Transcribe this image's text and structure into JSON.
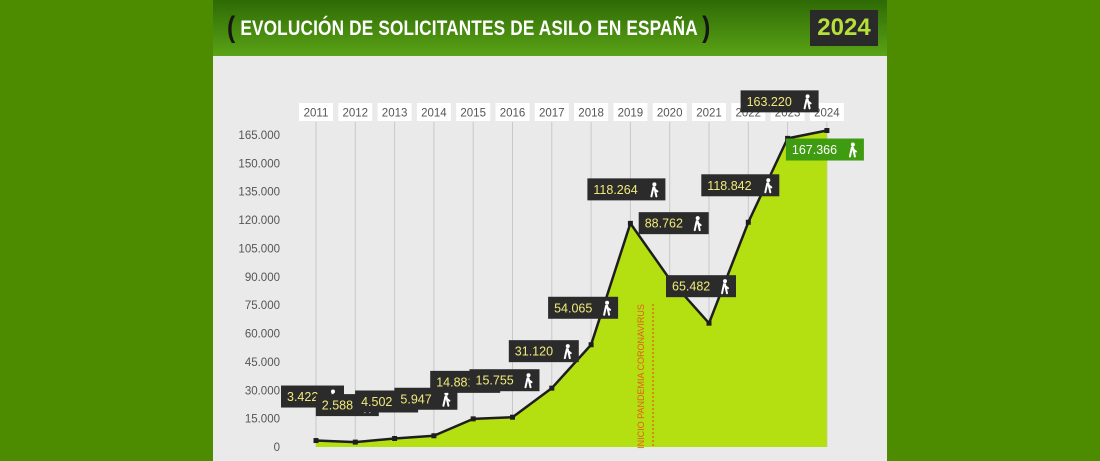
{
  "header": {
    "bracket_open": "(",
    "title": "EVOLUCIÓN DE SOLICITANTES DE ASILO EN ESPAÑA",
    "bracket_close": ")",
    "year_badge": "2024"
  },
  "chart_data": {
    "type": "area",
    "title": "EVOLUCIÓN DE SOLICITANTES DE ASILO EN ESPAÑA",
    "categories": [
      "2011",
      "2012",
      "2013",
      "2014",
      "2015",
      "2016",
      "2017",
      "2018",
      "2019",
      "2020",
      "2021",
      "2022",
      "2023",
      "2024"
    ],
    "values": [
      3422,
      2588,
      4502,
      5947,
      14881,
      15755,
      31120,
      54065,
      118264,
      88762,
      65482,
      118842,
      163220,
      167366
    ],
    "value_labels": [
      "3.422",
      "2.588",
      "4.502",
      "5.947",
      "14.881",
      "15.755",
      "31.120",
      "54.065",
      "118.264",
      "88.762",
      "65.482",
      "118.842",
      "163.220",
      "167.366"
    ],
    "y_ticks": [
      "0",
      "15.000",
      "30.000",
      "45.000",
      "60.000",
      "75.000",
      "90.000",
      "105.000",
      "120.000",
      "135.000",
      "150.000",
      "165.000"
    ],
    "ylim": [
      0,
      165000
    ],
    "xlabel": "",
    "ylabel": "",
    "grid": "vertical",
    "annotation": {
      "text": "INICIO PANDEMIA CORONAVIRUS",
      "position": "between 2019 and 2020"
    },
    "colors": {
      "area": "#b4e011",
      "line": "#1e1e1e",
      "label_bg": "#2b2b2b",
      "label_text": "#f2ea7a",
      "highlight_label_bg": "#3f9b10",
      "highlight_label_text": "#ffffff",
      "annotation": "#e25d1e",
      "gridline": "#c8c8c8",
      "header_bg": "#3e7f0a",
      "page_bg": "#4d8c00",
      "panel_bg": "#eaeaea"
    },
    "label_icon": "person-walking-icon"
  }
}
